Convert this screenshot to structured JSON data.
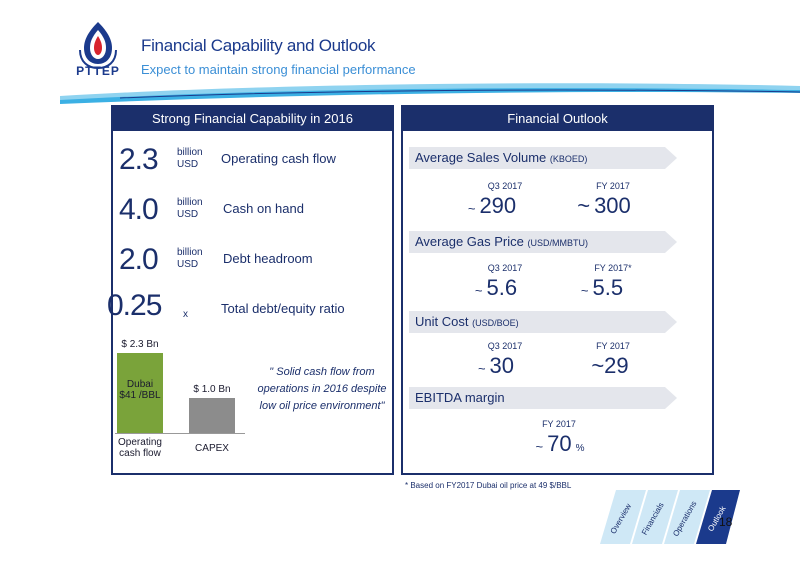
{
  "header": {
    "title": "Financial Capability and Outlook",
    "subtitle": "Expect to maintain strong financial performance",
    "logo_text": "PTTEP"
  },
  "left_panel": {
    "heading": "Strong Financial Capability in 2016",
    "metrics": [
      {
        "value": "2.3",
        "unit_top": "billion",
        "unit_bottom": "USD",
        "label": "Operating cash flow"
      },
      {
        "value": "4.0",
        "unit_top": "billion",
        "unit_bottom": "USD",
        "label": "Cash on hand"
      },
      {
        "value": "2.0",
        "unit_top": "billion",
        "unit_bottom": "USD",
        "label": "Debt headroom"
      },
      {
        "value": "0.25",
        "unit_top": "",
        "unit_bottom": "x",
        "label": "Total debt/equity ratio"
      }
    ],
    "chart_data": {
      "type": "bar",
      "categories": [
        "Operating cash flow",
        "CAPEX"
      ],
      "category_lines": [
        [
          "Operating",
          "cash flow"
        ],
        [
          "CAPEX"
        ]
      ],
      "values": [
        2.3,
        1.0
      ],
      "data_labels": [
        "$ 2.3 Bn",
        "$ 1.0 Bn"
      ],
      "bar_text": [
        "Dubai",
        "$41 /BBL"
      ],
      "colors": [
        "#7aa33a",
        "#8c8c8c"
      ],
      "ylim": [
        0,
        2.3
      ]
    },
    "quote": "\" Solid cash flow from operations in 2016 despite low oil price environment\""
  },
  "right_panel": {
    "heading": "Financial Outlook",
    "sections": [
      {
        "title": "Average Sales Volume",
        "unit": "(KBOED)",
        "items": [
          {
            "period": "Q3 2017",
            "tilde": "~",
            "value": "290",
            "suffix": ""
          },
          {
            "period": "FY 2017",
            "tilde": "~",
            "value": "300",
            "suffix": ""
          }
        ]
      },
      {
        "title": "Average Gas Price",
        "unit": "(USD/MMBTU)",
        "items": [
          {
            "period": "Q3 2017",
            "tilde": "~",
            "value": "5.6",
            "suffix": ""
          },
          {
            "period": "FY 2017*",
            "tilde": "~",
            "value": "5.5",
            "suffix": ""
          }
        ]
      },
      {
        "title": "Unit Cost",
        "unit": "(USD/BOE)",
        "items": [
          {
            "period": "Q3 2017",
            "tilde": "~",
            "value": "30",
            "suffix": ""
          },
          {
            "period": "FY 2017",
            "tilde": "",
            "value": "~29",
            "suffix": ""
          }
        ]
      },
      {
        "title": "EBITDA margin",
        "unit": "",
        "items": [
          {
            "period": "FY 2017",
            "tilde": "~",
            "value": "70",
            "suffix": "%"
          }
        ]
      }
    ]
  },
  "footnote": "* Based on FY2017 Dubai oil price at 49 $/BBL",
  "nav_tabs": [
    "Overview",
    "Financials",
    "Operations",
    "Outlook"
  ],
  "active_tab": "Outlook",
  "page_number": "18",
  "colors": {
    "navy": "#1b2f6b",
    "brand_blue": "#1b3a8c",
    "accent_blue": "#3b8fd6",
    "green": "#7aa33a"
  }
}
